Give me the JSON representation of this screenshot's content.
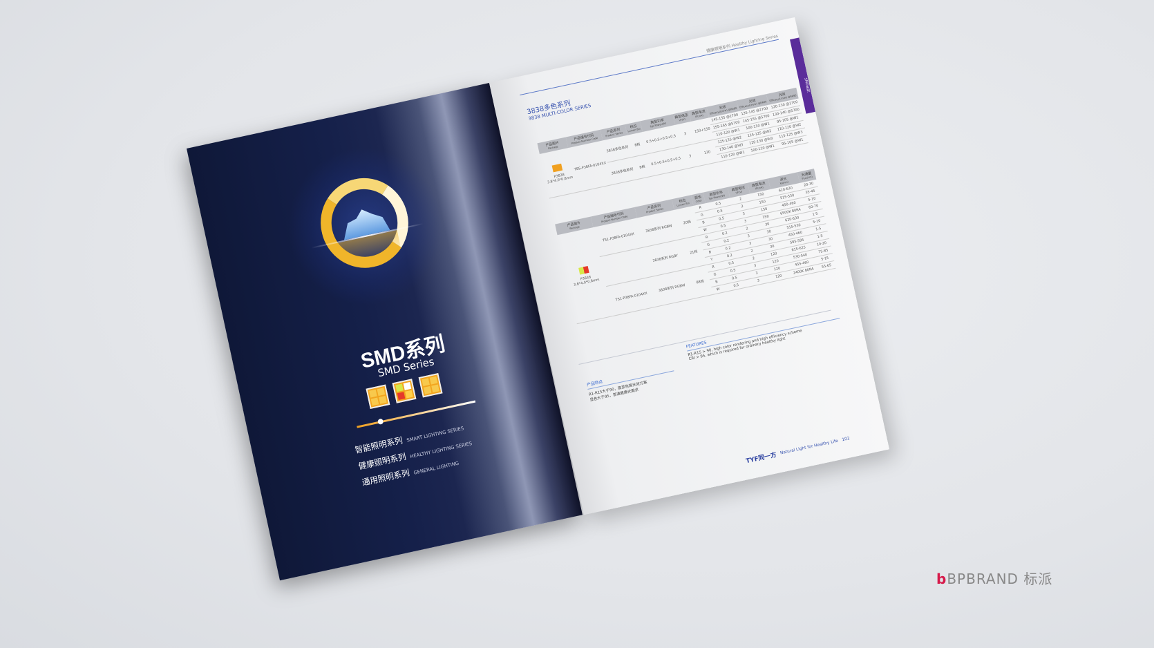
{
  "colors": {
    "accent": "#3a55b0",
    "tab": "#5a2c9a",
    "cover": "#15204a",
    "ring": "#f0b52a",
    "brand": "#d61a4a"
  },
  "cover": {
    "title": "SMD系列",
    "subtitle": "SMD Series",
    "series": [
      {
        "cn": "智能照明系列",
        "en": "SMART LIGHTING SERIES"
      },
      {
        "cn": "健康照明系列",
        "en": "HEALTHY LIGHTING SERIES"
      },
      {
        "cn": "通用照明系列",
        "en": "GENERAL LIGHTING"
      }
    ]
  },
  "page": {
    "header": "健康照明系列 Healthy Lighting Series",
    "side_tab": "SMD系列",
    "title_cn": "3838多色系列",
    "title_en": "3838 MULTI-COLOR SERIES",
    "table1": {
      "headers": [
        [
          "产品图片",
          "Package"
        ],
        [
          "产品编号代码",
          "Product Number Code"
        ],
        [
          "产品系列",
          "Product Series"
        ],
        [
          "档位",
          "Lumen Bin"
        ],
        [
          "典型功率",
          "Typ-Power(W)"
        ],
        [
          "典型电压",
          "VF(V)"
        ],
        [
          "典型电流",
          "IF(mA)"
        ],
        [
          "光效",
          "Efficacy(Lm/w) @RA80"
        ],
        [
          "光效",
          "Efficacy(Lm/w) @RA90"
        ],
        [
          "光效",
          "Efficacy(Lm/w) @RA95"
        ]
      ],
      "package": "P3838",
      "package_size": "3.8*4.0*0.8mm",
      "code": "TBS-P38FA-0104XX",
      "groups": [
        {
          "series": "3838多色系列",
          "bin": "8档",
          "power": "0.5+0.5+0.5+0.5",
          "vf": "3",
          "if": "150+150",
          "eff": [
            [
              "145-155 @2700",
              "135-145 @2700",
              "120-130 @2700"
            ],
            [
              "155-165 @5700",
              "145-155 @5700",
              "130-140 @5700"
            ],
            [
              "110-120 @W1",
              "100-110 @W1",
              "95-105 @W1"
            ]
          ]
        },
        {
          "series": "3838多色系列",
          "bin": "8档",
          "power": "0.5+0.5+0.5+0.5",
          "vf": "3",
          "if": "120",
          "eff": [
            [
              "125-135 @W2",
              "115-125 @W2",
              "110-120 @W2"
            ],
            [
              "130-140 @W3",
              "120-130 @W3",
              "115-125 @W3"
            ],
            [
              "110-120 @W1",
              "100-110 @W1",
              "95-105 @W1"
            ]
          ]
        }
      ]
    },
    "table2": {
      "headers": [
        [
          "产品图片",
          "Package"
        ],
        [
          "产品编号代码",
          "Product Number Code"
        ],
        [
          "产品系列",
          "Product Series"
        ],
        [
          "档位",
          "Lumen Bin"
        ],
        [
          "颜色",
          "Color"
        ],
        [
          "典型功率",
          "Typ-Power(W)"
        ],
        [
          "典型电压",
          "VF(V)"
        ],
        [
          "典型电流",
          "IF(mA)"
        ],
        [
          "波长",
          "λd(nm)"
        ],
        [
          "光通量",
          "Flux(Lm)"
        ]
      ],
      "package": "P3838",
      "package_size": "3.8*4.0*0.8mm",
      "groups": [
        {
          "code": "TS1-P38FA-0104XX",
          "series": "3838系列 RGBW",
          "bin": "20档",
          "rows": [
            [
              "R",
              "0.5",
              "2",
              "150",
              "620-630",
              "20-30"
            ],
            [
              "G",
              "0.5",
              "3",
              "150",
              "515-530",
              "35-45"
            ],
            [
              "B",
              "0.5",
              "3",
              "150",
              "450-460",
              "5-10"
            ],
            [
              "W",
              "0.5",
              "3",
              "150",
              "6500K 80RA",
              "60-70"
            ]
          ]
        },
        {
          "code": "",
          "series": "3838系列 RGBY",
          "bin": "21档",
          "rows": [
            [
              "R",
              "0.2",
              "2",
              "30",
              "620-630",
              "1-5"
            ],
            [
              "G",
              "0.2",
              "3",
              "30",
              "515-530",
              "5-10"
            ],
            [
              "B",
              "0.2",
              "3",
              "30",
              "450-460",
              "1-5"
            ],
            [
              "Y",
              "0.2",
              "2",
              "30",
              "585-595",
              "1-5"
            ]
          ]
        },
        {
          "code": "TS1-P38FA-0104XX",
          "series": "3838系列 RGBW",
          "bin": "88档",
          "rows": [
            [
              "R",
              "0.5",
              "2",
              "120",
              "615-625",
              "10-20"
            ],
            [
              "G",
              "0.5",
              "3",
              "120",
              "530-540",
              "75-85"
            ],
            [
              "B",
              "0.5",
              "3",
              "120",
              "455-460",
              "5-15"
            ],
            [
              "W",
              "0.5",
              "3",
              "120",
              "2400K 80RA",
              "55-65"
            ]
          ]
        }
      ]
    },
    "features_cn": {
      "title": "产品特点",
      "items": [
        "R1-R15大于90，高显色高光效方案",
        "显色大于95，普通健康光需求"
      ]
    },
    "features_en": {
      "title": "FEATURES",
      "items": [
        "R1-R15 > 90, high color rendering and high efficiency scheme",
        "CRI > 95, which is required for ordinary healthy light"
      ]
    },
    "footer": {
      "logo": "TYF同一方",
      "slogan": "Natural Light for Healthy Life",
      "page_no": "102"
    }
  },
  "brand": {
    "mark": "b",
    "name": "BPBRAND 标派"
  }
}
